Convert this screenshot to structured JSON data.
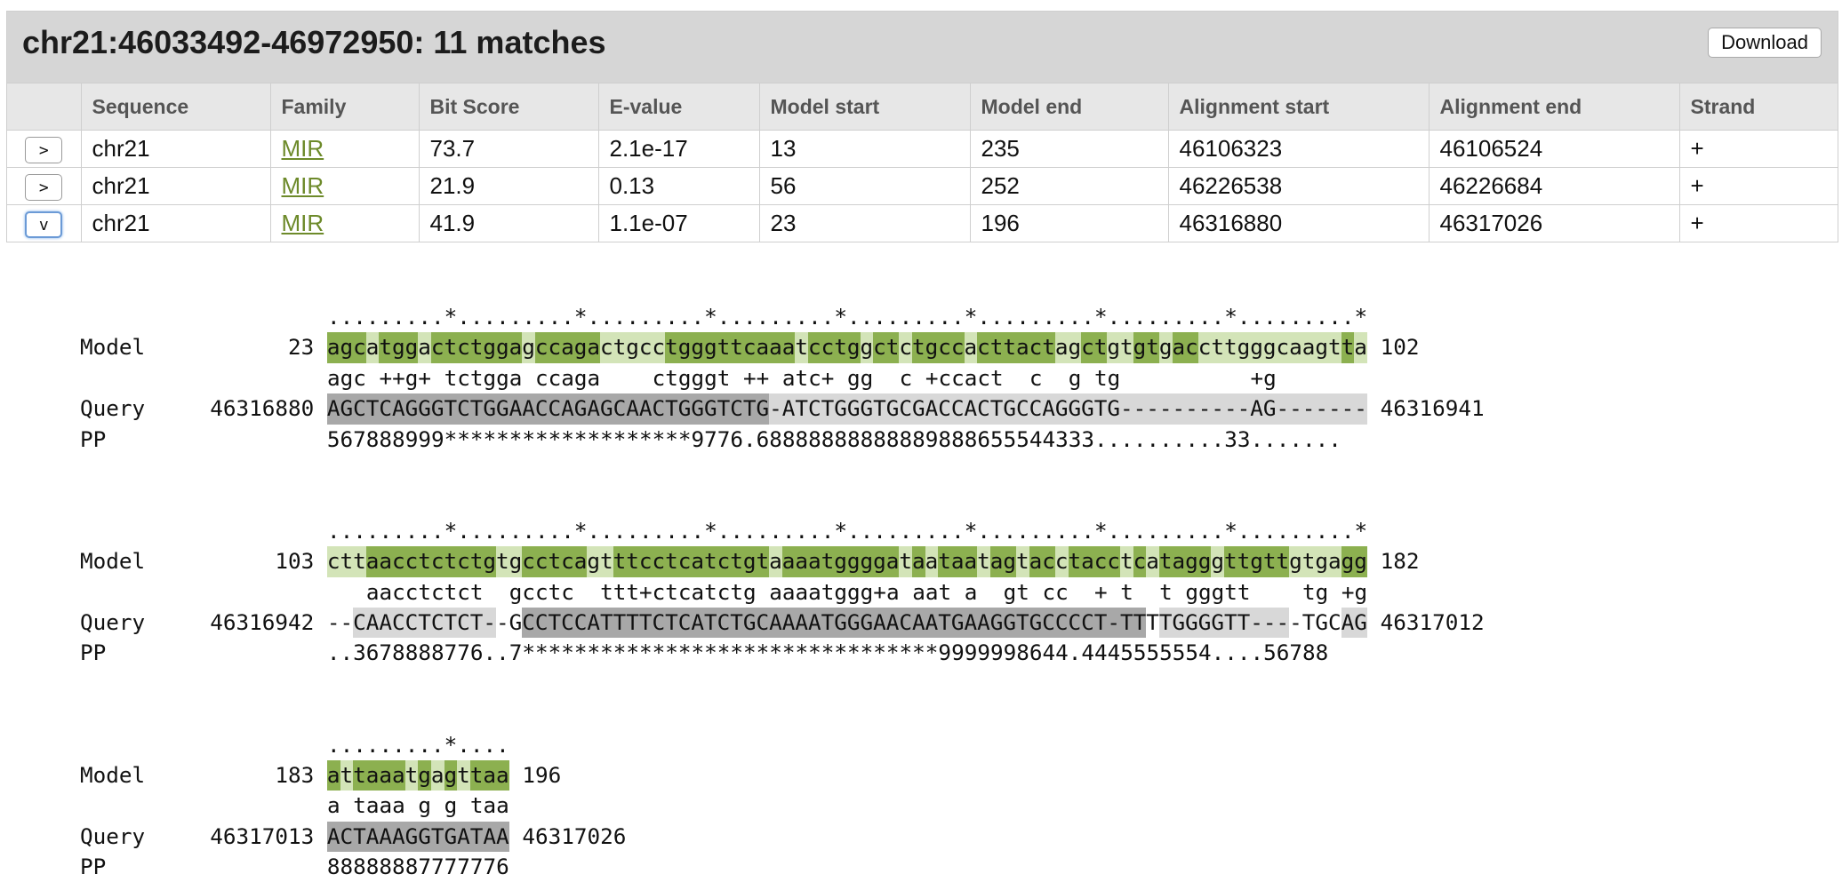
{
  "header": {
    "title": "chr21:46033492-46972950: 11 matches",
    "download_label": "Download"
  },
  "table": {
    "columns": [
      "",
      "Sequence",
      "Family",
      "Bit Score",
      "E-value",
      "Model start",
      "Model end",
      "Alignment start",
      "Alignment end",
      "Strand"
    ],
    "rows": [
      {
        "toggle": ">",
        "expanded": false,
        "sequence": "chr21",
        "family": "MIR",
        "bit_score": "73.7",
        "evalue": "2.1e-17",
        "model_start": "13",
        "model_end": "235",
        "align_start": "46106323",
        "align_end": "46106524",
        "strand": "+"
      },
      {
        "toggle": ">",
        "expanded": false,
        "sequence": "chr21",
        "family": "MIR",
        "bit_score": "21.9",
        "evalue": "0.13",
        "model_start": "56",
        "model_end": "252",
        "align_start": "46226538",
        "align_end": "46226684",
        "strand": "+"
      },
      {
        "toggle": "v",
        "expanded": true,
        "sequence": "chr21",
        "family": "MIR",
        "bit_score": "41.9",
        "evalue": "1.1e-07",
        "model_start": "23",
        "model_end": "196",
        "align_start": "46316880",
        "align_end": "46317026",
        "strand": "+"
      }
    ]
  },
  "alignment": {
    "colors": {
      "match_strong": "#8cb050",
      "match_weak": "#d3e4b8",
      "query_dark": "#a8a8a8",
      "query_light": "#d8d8d8"
    },
    "blocks": [
      {
        "ruler": ".........*.........*.........*.........*.........*.........*.........*.........*",
        "model_label": "Model",
        "model_start": "23",
        "model_seq": "agcatggactctggagccagactgcctgggttcaaatcctggctctgccacttactagctgtgtgaccttgggcaagtta",
        "model_end": "102",
        "match": "agc ++g+ tctgga ccaga    ctgggt ++ atc+ gg  c +ccact  c  g tg          +g       ",
        "query_label": "Query",
        "query_start": "46316880",
        "query_seq": "AGCTCAGGGTCTGGAACCAGAGCAACTGGGTCTG-ATCTGGGTGCGACCACTGCCAGGGTG----------AG-------",
        "query_end": "46316941",
        "pp_label": "PP",
        "pp": "567888999*******************9776.68888888888889888655544333..........33.......",
        "model_shade": "ssswssswssssssswssssswwwwwsssssssssswsssswsswsssswsssssswwsswwsswsswwwwwwwwwwwswwwwwwww",
        "query_shade": "ddddddddddddddddddddddddddddddddddllllllllllllllllllllllllllllllllllllllllllllllll"
      },
      {
        "ruler": ".........*.........*.........*.........*.........*.........*.........*.........*",
        "model_label": "Model",
        "model_start": "103",
        "model_seq": "cttaacctctctgtgcctcagtttcctcatctgtaaaatggggataataatagtacctacctcatagggttgttgtgagg",
        "model_end": "182",
        "match": "   aacctctct  gcctc  ttt+ctcatctg aaaatggg+a aat a  gt cc  + t  t gggtt    tg +g",
        "query_label": "Query",
        "query_start": "46316942",
        "query_seq": "--CAACCTCTCT--GCCTCCATTTTCTCATCTGCAAAATGGGAACAATGAAGGTGCCCCT-TTTTGGGGTT----TGCAG",
        "query_end": "46317012",
        "pp_label": "PP",
        "pp": "..3678888776..7********************************9999998644.4445555554....56788",
        "model_shade": "wwwsssssssssswwssssswwsssssssssssswssssssssswswssswsswsswsssswswsssswssssswwwwssww",
        "query_shade": "wwlllllllllllwwddddddddddddddddddddddddddddddddddddddddddddddddwllllllllllwwwwllll"
      },
      {
        "ruler": ".........*....",
        "model_label": "Model",
        "model_start": "183",
        "model_seq": "attaaatgagttaa",
        "model_end": "196",
        "match": "a taaa g g taa",
        "query_label": "Query",
        "query_start": "46317013",
        "query_seq": "ACTAAAGGTGATAA",
        "query_end": "46317026",
        "pp_label": "PP",
        "pp": "88888887777776",
        "model_shade": "swsssswswswsss",
        "query_shade": "dddddddddddddd"
      }
    ]
  }
}
